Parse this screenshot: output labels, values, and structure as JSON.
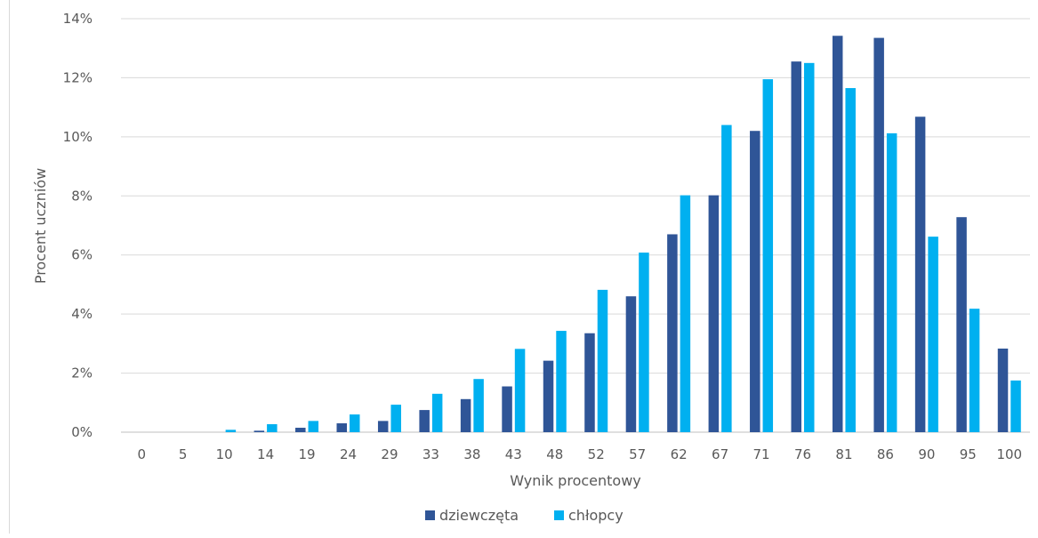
{
  "chart_data": {
    "type": "bar",
    "title": "",
    "xlabel": "Wynik procentowy",
    "ylabel": "Procent uczniów",
    "categories": [
      "0",
      "5",
      "10",
      "14",
      "19",
      "24",
      "29",
      "33",
      "38",
      "43",
      "48",
      "52",
      "57",
      "62",
      "67",
      "71",
      "76",
      "81",
      "86",
      "90",
      "95",
      "100"
    ],
    "series": [
      {
        "name": "dziewczęta",
        "color": "#2f5597",
        "values": [
          0,
          0,
          0,
          0.05,
          0.15,
          0.3,
          0.38,
          0.75,
          1.12,
          1.55,
          2.42,
          3.35,
          4.6,
          6.7,
          8.02,
          10.2,
          12.55,
          13.42,
          13.35,
          10.68,
          7.28,
          2.83
        ]
      },
      {
        "name": "chłopcy",
        "color": "#00b0f0",
        "values": [
          0,
          0,
          0.08,
          0.27,
          0.38,
          0.6,
          0.93,
          1.3,
          1.8,
          2.82,
          3.43,
          4.82,
          6.08,
          8.02,
          10.4,
          11.95,
          12.5,
          11.65,
          10.12,
          6.62,
          4.18,
          1.75
        ]
      }
    ],
    "ylim": [
      0,
      14
    ],
    "yticks": [
      0,
      2,
      4,
      6,
      8,
      10,
      12,
      14
    ],
    "ytick_labels": [
      "0%",
      "2%",
      "4%",
      "6%",
      "8%",
      "10%",
      "12%",
      "14%"
    ],
    "grid": true,
    "legend_position": "bottom"
  }
}
